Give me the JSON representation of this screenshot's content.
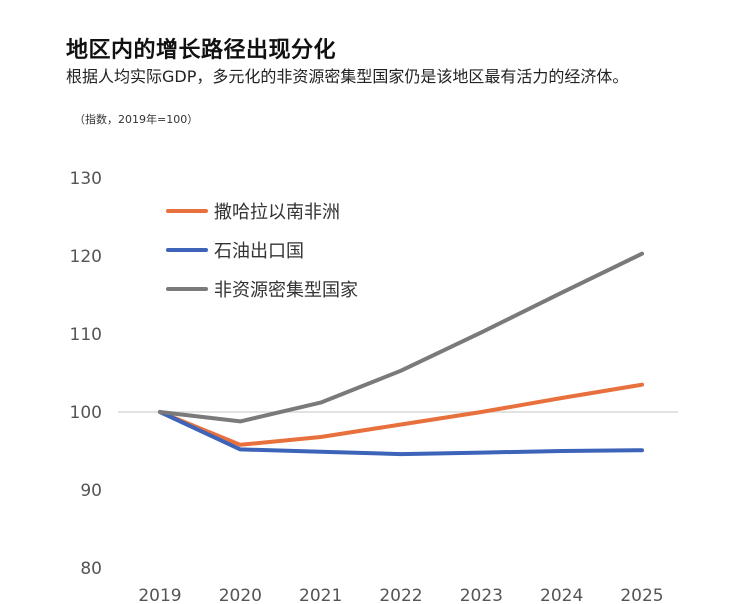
{
  "title": "地区内的增长路径出现分化",
  "subtitle": "根据人均实际GDP，多元化的非资源密集型国家仍是该地区最有活力的经济体。",
  "note": "（指数，2019年=100）",
  "colors": {
    "series_1": "#e8703d",
    "series_2": "#3d64b8",
    "series_3": "#7a7a7a",
    "baseline": "#d9d9d9"
  },
  "chart_data": {
    "type": "line",
    "x": [
      "2019",
      "2020",
      "2021",
      "2022",
      "2023",
      "2024",
      "2025"
    ],
    "ylim": [
      80,
      130
    ],
    "yticks": [
      80,
      90,
      100,
      110,
      120,
      130
    ],
    "reference_line": 100,
    "grid": false,
    "legend_position": "top-left",
    "series": [
      {
        "name": "撒哈拉以南非洲",
        "color": "#e8703d",
        "values": [
          100,
          95.8,
          96.8,
          98.4,
          100.0,
          101.8,
          103.5
        ]
      },
      {
        "name": "石油出口国",
        "color": "#3d64b8",
        "values": [
          100,
          95.2,
          94.9,
          94.6,
          94.8,
          95.0,
          95.1
        ]
      },
      {
        "name": "非资源密集型国家",
        "color": "#7a7a7a",
        "values": [
          100,
          98.8,
          101.2,
          105.3,
          110.2,
          115.3,
          120.3
        ]
      }
    ]
  }
}
